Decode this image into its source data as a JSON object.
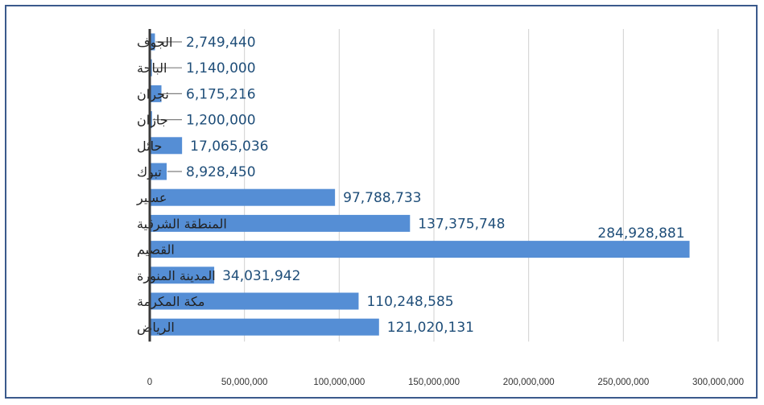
{
  "chart_data": {
    "type": "bar",
    "orientation": "horizontal",
    "categories": [
      "الجوف",
      "الباحة",
      "نجران",
      "جازان",
      "حائل",
      "تبوك",
      "عسير",
      "المنطقة الشرقية",
      "القصيم",
      "المدينة المنورة",
      "مكة المكرمة",
      "الرياض"
    ],
    "values": [
      2749440,
      1140000,
      6175216,
      1200000,
      17065036,
      8928450,
      97788733,
      137375748,
      284928881,
      34031942,
      110248585,
      121020131
    ],
    "data_labels": [
      "2,749,440",
      "1,140,000",
      "6,175,216",
      "1,200,000",
      "17,065,036",
      "8,928,450",
      "97,788,733",
      "137,375,748",
      "284,928,881",
      "34,031,942",
      "110,248,585",
      "121,020,131"
    ],
    "x_ticks": [
      "0",
      "50,000,000",
      "100,000,000",
      "150,000,000",
      "200,000,000",
      "250,000,000",
      "300,000,000"
    ],
    "xlim": [
      0,
      300000000
    ],
    "xlabel": "",
    "ylabel": "",
    "title": "",
    "grid": "vertical",
    "legend": "none",
    "bar_color": "#558ed5",
    "label_color": "#1f4e79",
    "border_color": "#3b5a8c"
  }
}
